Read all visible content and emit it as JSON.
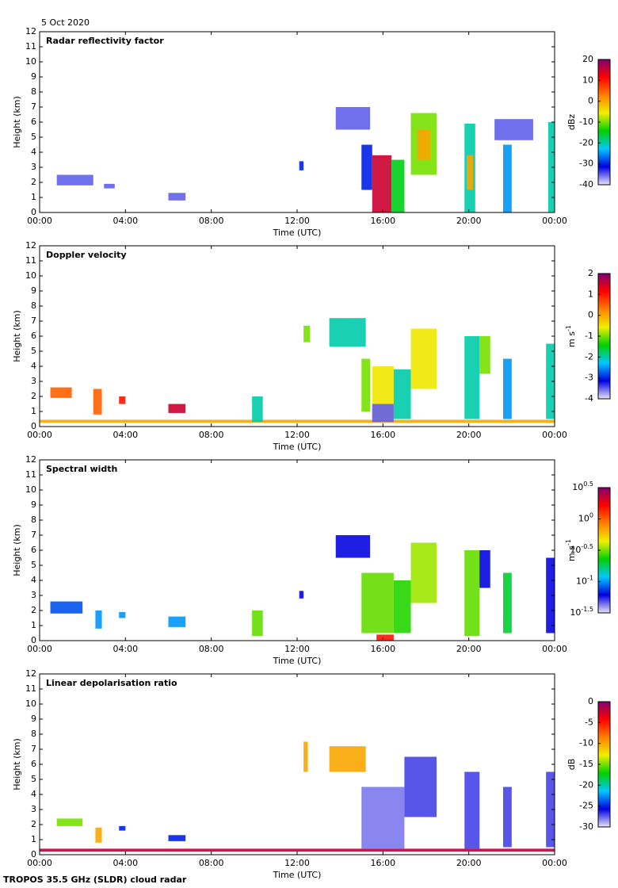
{
  "date": "5 Oct 2020",
  "footer": "TROPOS 35.5 GHz (SLDR) cloud radar",
  "chart_data": [
    {
      "type": "heatmap",
      "title": "Radar reflectivity factor",
      "xlabel": "Time (UTC)",
      "ylabel": "Height (km)",
      "xlim": [
        0,
        24
      ],
      "xticks": [
        {
          "value": 0,
          "label": "00:00"
        },
        {
          "value": 4,
          "label": "04:00"
        },
        {
          "value": 8,
          "label": "08:00"
        },
        {
          "value": 12,
          "label": "12:00"
        },
        {
          "value": 16,
          "label": "16:00"
        },
        {
          "value": 20,
          "label": "20:00"
        },
        {
          "value": 24,
          "label": "00:00"
        }
      ],
      "ylim": [
        0,
        12
      ],
      "yticks": [
        0,
        1,
        2,
        3,
        4,
        5,
        6,
        7,
        8,
        9,
        10,
        11,
        12
      ],
      "clabel": "dBz",
      "clim": [
        -40,
        20
      ],
      "cticks": [
        -40,
        -30,
        -20,
        -10,
        0,
        10,
        20
      ],
      "log": false,
      "colormap": [
        "#e8e4f8",
        "#0000e0",
        "#00c8ff",
        "#00d000",
        "#f0f000",
        "#ff8000",
        "#ff0000",
        "#800070"
      ],
      "cells": [
        {
          "time": [
            0.8,
            2.5
          ],
          "height": [
            1.8,
            2.5
          ],
          "value": -35
        },
        {
          "time": [
            3.0,
            3.5
          ],
          "height": [
            1.6,
            1.9
          ],
          "value": -35
        },
        {
          "time": [
            6.0,
            6.8
          ],
          "height": [
            0.8,
            1.3
          ],
          "value": -35
        },
        {
          "time": [
            12.1,
            12.3
          ],
          "height": [
            2.8,
            3.4
          ],
          "value": -30
        },
        {
          "time": [
            13.8,
            15.4
          ],
          "height": [
            5.5,
            7.0
          ],
          "value": -35
        },
        {
          "time": [
            15.0,
            15.5
          ],
          "height": [
            1.5,
            4.5
          ],
          "value": -30
        },
        {
          "time": [
            15.5,
            16.4
          ],
          "height": [
            0,
            3.8
          ],
          "value": 15
        },
        {
          "time": [
            16.4,
            17.0
          ],
          "height": [
            0,
            3.5
          ],
          "value": -15
        },
        {
          "time": [
            17.3,
            18.5
          ],
          "height": [
            2.5,
            6.6
          ],
          "value": -10
        },
        {
          "time": [
            17.6,
            18.2
          ],
          "height": [
            3.5,
            5.5
          ],
          "value": 0
        },
        {
          "time": [
            19.8,
            20.3
          ],
          "height": [
            0,
            5.9
          ],
          "value": -20
        },
        {
          "time": [
            19.9,
            20.2
          ],
          "height": [
            1.5,
            3.8
          ],
          "value": 0
        },
        {
          "time": [
            21.2,
            23.0
          ],
          "height": [
            4.8,
            6.2
          ],
          "value": -35
        },
        {
          "time": [
            21.6,
            22.0
          ],
          "height": [
            0,
            4.5
          ],
          "value": -25
        },
        {
          "time": [
            23.7,
            24
          ],
          "height": [
            0,
            6
          ],
          "value": -20
        }
      ]
    },
    {
      "type": "heatmap",
      "title": "Doppler velocity",
      "xlabel": "Time (UTC)",
      "ylabel": "Height (km)",
      "xlim": [
        0,
        24
      ],
      "xticks": [
        {
          "value": 0,
          "label": "00:00"
        },
        {
          "value": 4,
          "label": "04:00"
        },
        {
          "value": 8,
          "label": "08:00"
        },
        {
          "value": 12,
          "label": "12:00"
        },
        {
          "value": 16,
          "label": "16:00"
        },
        {
          "value": 20,
          "label": "20:00"
        },
        {
          "value": 24,
          "label": "00:00"
        }
      ],
      "ylim": [
        0,
        12
      ],
      "yticks": [
        0,
        1,
        2,
        3,
        4,
        5,
        6,
        7,
        8,
        9,
        10,
        11,
        12
      ],
      "clabel": "m s^-1",
      "clim": [
        -4,
        2
      ],
      "cticks": [
        -4,
        -3,
        -2,
        -1,
        0,
        1,
        2
      ],
      "log": false,
      "colormap": [
        "#e8e4f8",
        "#0000e0",
        "#00c8ff",
        "#00d000",
        "#f0f000",
        "#ff8000",
        "#ff0000",
        "#800070"
      ],
      "cells": [
        {
          "time": [
            0,
            24
          ],
          "height": [
            0.25,
            0.45
          ],
          "value": 0
        },
        {
          "time": [
            0.5,
            1.5
          ],
          "height": [
            1.9,
            2.6
          ],
          "value": 0.5
        },
        {
          "time": [
            2.5,
            2.9
          ],
          "height": [
            0.8,
            2.5
          ],
          "value": 0.5
        },
        {
          "time": [
            3.7,
            4.0
          ],
          "height": [
            1.5,
            2.0
          ],
          "value": 1
        },
        {
          "time": [
            6.0,
            6.8
          ],
          "height": [
            0.9,
            1.5
          ],
          "value": 1.5
        },
        {
          "time": [
            9.9,
            10.4
          ],
          "height": [
            0.3,
            2.0
          ],
          "value": -2
        },
        {
          "time": [
            12.3,
            12.6
          ],
          "height": [
            5.6,
            6.7
          ],
          "value": -1
        },
        {
          "time": [
            13.5,
            15.2
          ],
          "height": [
            5.3,
            7.2
          ],
          "value": -2
        },
        {
          "time": [
            15.0,
            15.4
          ],
          "height": [
            1.0,
            4.5
          ],
          "value": -1
        },
        {
          "time": [
            15.5,
            16.5
          ],
          "height": [
            0.5,
            4.0
          ],
          "value": -0.5
        },
        {
          "time": [
            15.5,
            16.5
          ],
          "height": [
            0.3,
            1.5
          ],
          "value": -3.5
        },
        {
          "time": [
            16.5,
            17.3
          ],
          "height": [
            0.5,
            3.8
          ],
          "value": -2
        },
        {
          "time": [
            17.3,
            18.5
          ],
          "height": [
            2.5,
            6.5
          ],
          "value": -0.5
        },
        {
          "time": [
            19.8,
            20.5
          ],
          "height": [
            0.5,
            6.0
          ],
          "value": -2
        },
        {
          "time": [
            20.5,
            21.0
          ],
          "height": [
            3.5,
            6.0
          ],
          "value": -1
        },
        {
          "time": [
            21.6,
            22.0
          ],
          "height": [
            0.5,
            4.5
          ],
          "value": -2.5
        },
        {
          "time": [
            23.6,
            24
          ],
          "height": [
            0.5,
            5.5
          ],
          "value": -2
        }
      ]
    },
    {
      "type": "heatmap",
      "title": "Spectral width",
      "xlabel": "Time (UTC)",
      "ylabel": "Height (km)",
      "xlim": [
        0,
        24
      ],
      "xticks": [
        {
          "value": 0,
          "label": "00:00"
        },
        {
          "value": 4,
          "label": "04:00"
        },
        {
          "value": 8,
          "label": "08:00"
        },
        {
          "value": 12,
          "label": "12:00"
        },
        {
          "value": 16,
          "label": "16:00"
        },
        {
          "value": 20,
          "label": "20:00"
        },
        {
          "value": 24,
          "label": "00:00"
        }
      ],
      "ylim": [
        0,
        12
      ],
      "yticks": [
        0,
        1,
        2,
        3,
        4,
        5,
        6,
        7,
        8,
        9,
        10,
        11,
        12
      ],
      "clabel": "m s^-1",
      "clim": [
        0.0316,
        3.162
      ],
      "cticks": [
        {
          "value": 0.0316,
          "label": "10^-1.5"
        },
        {
          "value": 0.1,
          "label": "10^-1"
        },
        {
          "value": 0.316,
          "label": "10^-0.5"
        },
        {
          "value": 1,
          "label": "10^0"
        },
        {
          "value": 3.162,
          "label": "10^0.5"
        }
      ],
      "log": true,
      "colormap": [
        "#e8e4f8",
        "#0000e0",
        "#00c8ff",
        "#00d000",
        "#f0f000",
        "#ff8000",
        "#ff0000",
        "#800070"
      ],
      "cells": [
        {
          "time": [
            0.5,
            2.0
          ],
          "height": [
            1.8,
            2.6
          ],
          "value": 0.08
        },
        {
          "time": [
            2.6,
            2.9
          ],
          "height": [
            0.8,
            2.0
          ],
          "value": 0.1
        },
        {
          "time": [
            3.7,
            4.0
          ],
          "height": [
            1.5,
            1.9
          ],
          "value": 0.1
        },
        {
          "time": [
            6.0,
            6.8
          ],
          "height": [
            0.9,
            1.6
          ],
          "value": 0.1
        },
        {
          "time": [
            9.9,
            10.4
          ],
          "height": [
            0.3,
            2.0
          ],
          "value": 0.3
        },
        {
          "time": [
            12.1,
            12.3
          ],
          "height": [
            2.8,
            3.3
          ],
          "value": 0.06
        },
        {
          "time": [
            13.8,
            15.4
          ],
          "height": [
            5.5,
            7.0
          ],
          "value": 0.06
        },
        {
          "time": [
            15.0,
            16.5
          ],
          "height": [
            0.5,
            4.5
          ],
          "value": 0.3
        },
        {
          "time": [
            16.5,
            17.3
          ],
          "height": [
            0.5,
            4.0
          ],
          "value": 0.25
        },
        {
          "time": [
            17.3,
            18.5
          ],
          "height": [
            2.5,
            6.5
          ],
          "value": 0.35
        },
        {
          "time": [
            19.8,
            20.5
          ],
          "height": [
            0.3,
            6.0
          ],
          "value": 0.3
        },
        {
          "time": [
            20.5,
            21.0
          ],
          "height": [
            3.5,
            6.0
          ],
          "value": 0.06
        },
        {
          "time": [
            21.6,
            22.0
          ],
          "height": [
            0.5,
            4.5
          ],
          "value": 0.2
        },
        {
          "time": [
            23.6,
            24
          ],
          "height": [
            0.5,
            5.5
          ],
          "value": 0.06
        },
        {
          "time": [
            15.7,
            16.5
          ],
          "height": [
            0,
            0.4
          ],
          "value": 1.5
        }
      ]
    },
    {
      "type": "heatmap",
      "title": "Linear depolarisation ratio",
      "xlabel": "Time (UTC)",
      "ylabel": "Height (km)",
      "xlim": [
        0,
        24
      ],
      "xticks": [
        {
          "value": 0,
          "label": "00:00"
        },
        {
          "value": 4,
          "label": "04:00"
        },
        {
          "value": 8,
          "label": "08:00"
        },
        {
          "value": 12,
          "label": "12:00"
        },
        {
          "value": 16,
          "label": "16:00"
        },
        {
          "value": 20,
          "label": "20:00"
        },
        {
          "value": 24,
          "label": "00:00"
        }
      ],
      "ylim": [
        0,
        12
      ],
      "yticks": [
        0,
        1,
        2,
        3,
        4,
        5,
        6,
        7,
        8,
        9,
        10,
        11,
        12
      ],
      "clabel": "dB",
      "clim": [
        -30,
        0
      ],
      "cticks": [
        -30,
        -25,
        -20,
        -15,
        -10,
        -5,
        0
      ],
      "log": false,
      "colormap": [
        "#e8e4f8",
        "#0000e0",
        "#00c8ff",
        "#00d000",
        "#f0f000",
        "#ff8000",
        "#ff0000",
        "#800070"
      ],
      "cells": [
        {
          "time": [
            0,
            24
          ],
          "height": [
            0.2,
            0.4
          ],
          "value": -2
        },
        {
          "time": [
            0.8,
            2.0
          ],
          "height": [
            1.9,
            2.4
          ],
          "value": -15
        },
        {
          "time": [
            2.6,
            2.9
          ],
          "height": [
            0.8,
            1.8
          ],
          "value": -10
        },
        {
          "time": [
            3.7,
            4.0
          ],
          "height": [
            1.6,
            1.9
          ],
          "value": -25
        },
        {
          "time": [
            6.0,
            6.8
          ],
          "height": [
            0.9,
            1.3
          ],
          "value": -25
        },
        {
          "time": [
            12.3,
            12.5
          ],
          "height": [
            5.5,
            7.5
          ],
          "value": -10
        },
        {
          "time": [
            13.5,
            15.2
          ],
          "height": [
            5.5,
            7.2
          ],
          "value": -10
        },
        {
          "time": [
            15.0,
            17.0
          ],
          "height": [
            0.4,
            4.5
          ],
          "value": -28
        },
        {
          "time": [
            17.0,
            18.5
          ],
          "height": [
            2.5,
            6.5
          ],
          "value": -27
        },
        {
          "time": [
            19.8,
            20.5
          ],
          "height": [
            0.4,
            5.5
          ],
          "value": -27
        },
        {
          "time": [
            21.6,
            22.0
          ],
          "height": [
            0.5,
            4.5
          ],
          "value": -27
        },
        {
          "time": [
            23.6,
            24
          ],
          "height": [
            0.5,
            5.5
          ],
          "value": -27
        }
      ]
    }
  ]
}
